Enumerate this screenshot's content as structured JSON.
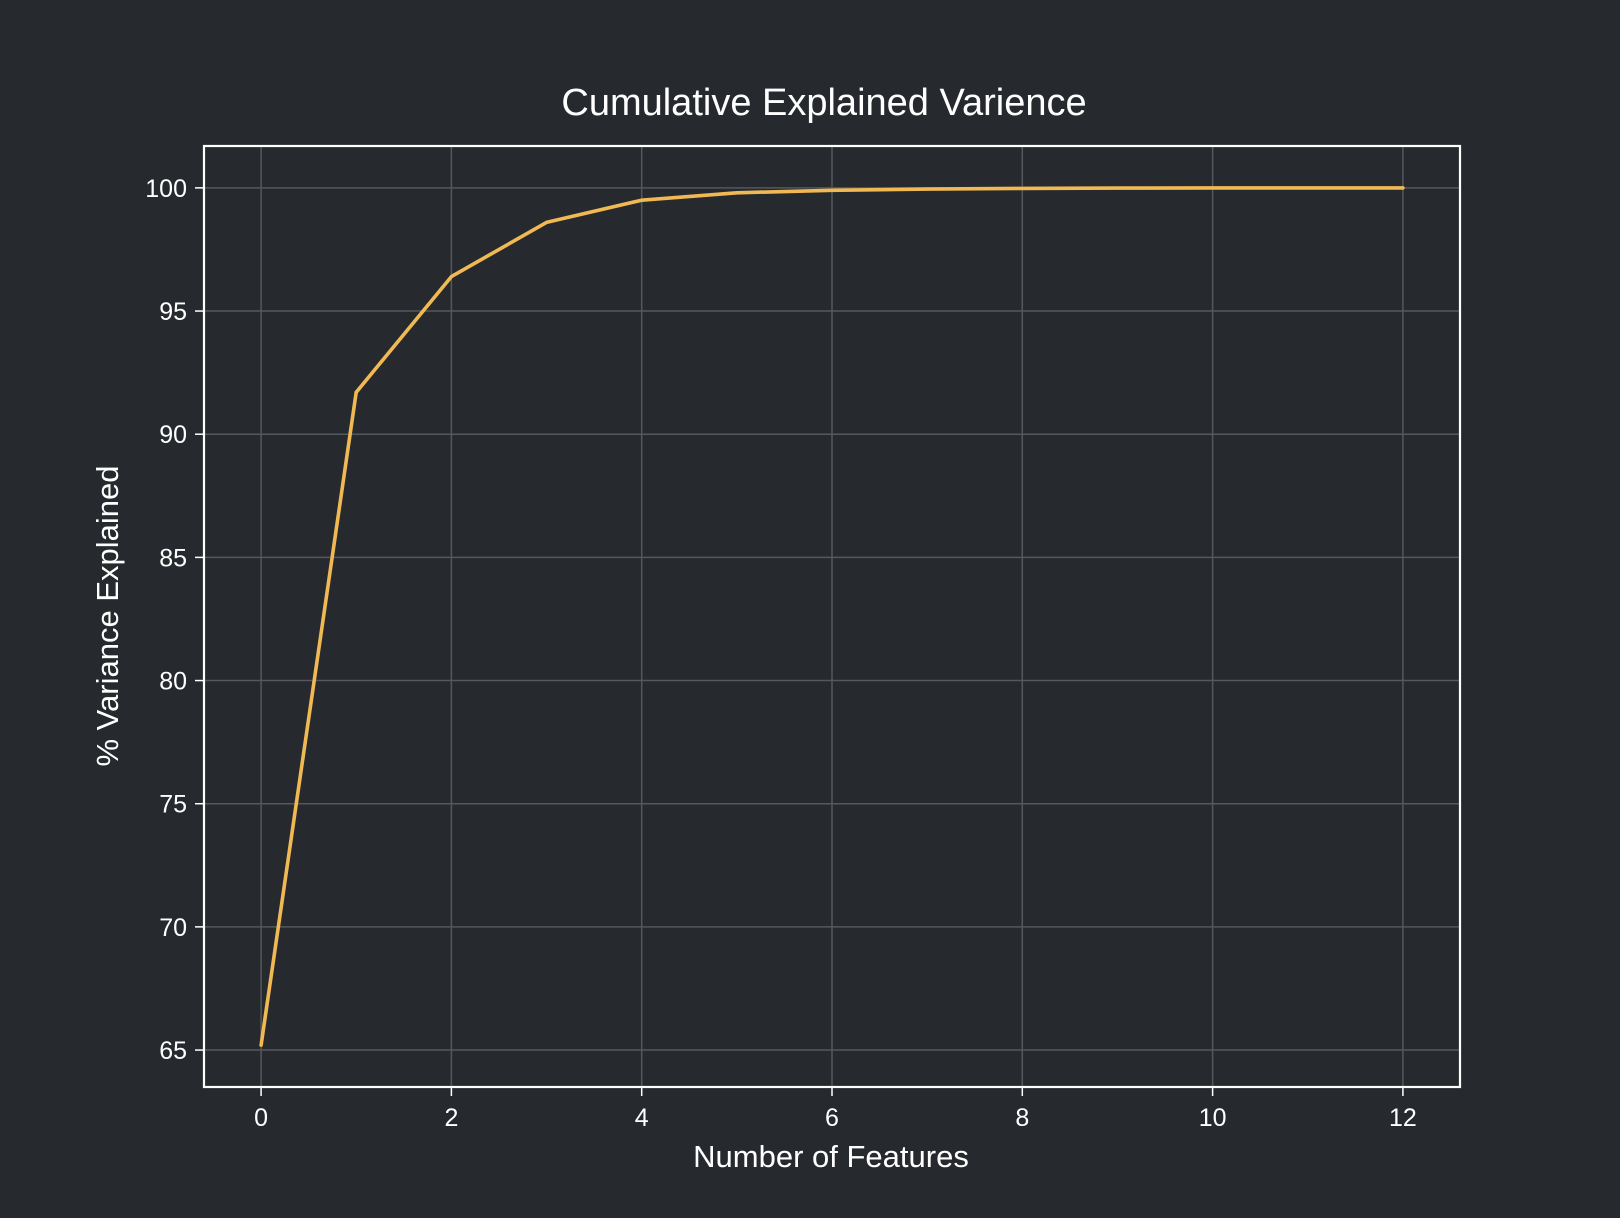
{
  "chart_data": {
    "type": "line",
    "title": "Cumulative Explained Varience",
    "xlabel": "Number of Features",
    "ylabel": "% Variance Explained",
    "xlim": [
      -0.6,
      12.6
    ],
    "ylim": [
      63.5,
      101.7
    ],
    "xticks": [
      0,
      2,
      4,
      6,
      8,
      10,
      12
    ],
    "xtick_labels": [
      "0",
      "2",
      "4",
      "6",
      "8",
      "10",
      "12"
    ],
    "yticks": [
      65,
      70,
      75,
      80,
      85,
      90,
      95,
      100
    ],
    "ytick_labels": [
      "65",
      "70",
      "75",
      "80",
      "85",
      "90",
      "95",
      "100"
    ],
    "grid": true,
    "series": [
      {
        "x": [
          0,
          1,
          2,
          3,
          4,
          5,
          6,
          7,
          8,
          9,
          10,
          11,
          12
        ],
        "y": [
          65.2,
          91.7,
          96.4,
          98.6,
          99.5,
          99.8,
          99.9,
          99.95,
          99.98,
          99.99,
          100.0,
          100.0,
          100.0
        ],
        "color": "#f0b953"
      }
    ],
    "colors": {
      "background": "#26292d",
      "grid": "#55585c",
      "frame": "#ffffff",
      "text": "#ffffff"
    }
  }
}
